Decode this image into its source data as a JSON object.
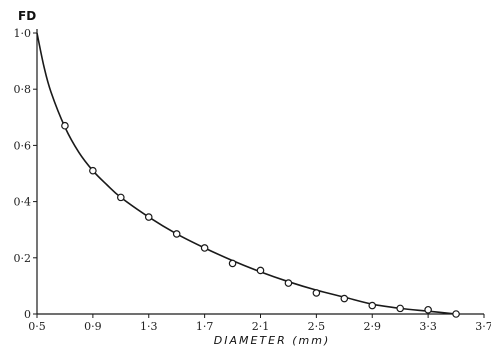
{
  "chart_data": {
    "type": "line",
    "title": "",
    "xlabel": "DIAMETER (mm)",
    "ylabel": "FD",
    "xlim": [
      0.5,
      3.7
    ],
    "ylim": [
      0,
      1.0
    ],
    "grid": false,
    "x_ticks": [
      0.5,
      0.9,
      1.3,
      1.7,
      2.1,
      2.5,
      2.9,
      3.3,
      3.7
    ],
    "x_tick_labels": [
      "0·5",
      "0·9",
      "1·3",
      "1·7",
      "2·1",
      "2·5",
      "2·9",
      "3·3",
      "3·7"
    ],
    "y_ticks": [
      0,
      0.2,
      0.4,
      0.6,
      0.8,
      1.0
    ],
    "y_tick_labels": [
      "0",
      "0·2",
      "0·4",
      "0·6",
      "0·8",
      "1·0"
    ],
    "series": [
      {
        "marker": "circle",
        "x": [
          0.7,
          0.9,
          1.1,
          1.3,
          1.5,
          1.7,
          1.9,
          2.1,
          2.3,
          2.5,
          2.7,
          2.9,
          3.1,
          3.3,
          3.5
        ],
        "y": [
          0.67,
          0.51,
          0.415,
          0.345,
          0.285,
          0.235,
          0.18,
          0.155,
          0.11,
          0.075,
          0.055,
          0.03,
          0.02,
          0.015,
          0.0
        ]
      },
      {
        "style": "smooth-curve",
        "x": [
          0.5,
          0.55,
          0.6,
          0.7,
          0.8,
          0.9,
          1.0,
          1.1,
          1.3,
          1.5,
          1.7,
          1.9,
          2.1,
          2.3,
          2.5,
          2.7,
          2.9,
          3.1,
          3.3,
          3.5
        ],
        "y": [
          1.0,
          0.88,
          0.79,
          0.665,
          0.575,
          0.51,
          0.46,
          0.415,
          0.345,
          0.285,
          0.235,
          0.19,
          0.15,
          0.115,
          0.085,
          0.06,
          0.035,
          0.02,
          0.01,
          0.0
        ]
      }
    ]
  },
  "colors": {
    "ink": "#1a1a1a",
    "marker_fill": "#ffffff",
    "background": "#ffffff"
  }
}
